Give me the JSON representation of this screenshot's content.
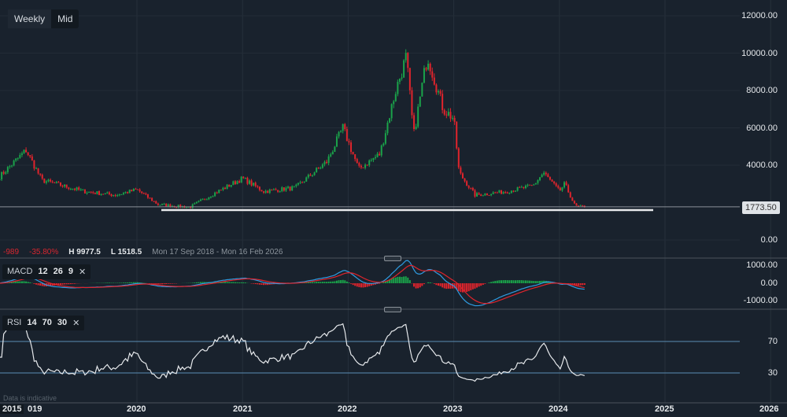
{
  "toolbar": {
    "weekly": "Weekly",
    "mid": "Mid"
  },
  "info": {
    "change": "-989",
    "change_pct": "-35.80%",
    "high": "H 9977.5",
    "low": "L 1518.5",
    "range": "Mon 17 Sep 2018 - Mon 16 Feb 2026"
  },
  "current_price": "1773.50",
  "price_axis": [
    "12000.00",
    "10000.00",
    "8000.00",
    "6000.00",
    "4000.00",
    "0.00"
  ],
  "macd": {
    "label": "MACD",
    "p1": "12",
    "p2": "26",
    "p3": "9",
    "axis": [
      "1000.00",
      "0.00",
      "-1000.00"
    ]
  },
  "rsi": {
    "label": "RSI",
    "p1": "14",
    "p2": "70",
    "p3": "30",
    "axis": [
      "70",
      "30"
    ]
  },
  "x_axis": [
    "2015",
    "019",
    "2020",
    "2021",
    "2022",
    "2023",
    "2024",
    "2025",
    "2026"
  ],
  "note": "Data is indicative",
  "colors": {
    "up": "#1aa34a",
    "down": "#e0242c",
    "bg": "#19222d"
  },
  "chart_data": {
    "type": "candlestick",
    "support_level": 1700,
    "price_path": [
      [
        2018.7,
        3400
      ],
      [
        2018.95,
        4800
      ],
      [
        2019.1,
        3200
      ],
      [
        2019.5,
        2600
      ],
      [
        2019.8,
        2400
      ],
      [
        2020.0,
        2700
      ],
      [
        2020.2,
        1900
      ],
      [
        2020.5,
        1750
      ],
      [
        2020.7,
        2400
      ],
      [
        2021.0,
        3300
      ],
      [
        2021.2,
        2600
      ],
      [
        2021.5,
        2800
      ],
      [
        2021.8,
        4200
      ],
      [
        2021.95,
        6000
      ],
      [
        2022.1,
        3800
      ],
      [
        2022.3,
        4600
      ],
      [
        2022.45,
        8000
      ],
      [
        2022.55,
        9800
      ],
      [
        2022.62,
        5600
      ],
      [
        2022.75,
        9900
      ],
      [
        2022.9,
        7000
      ],
      [
        2023.0,
        6500
      ],
      [
        2023.05,
        3600
      ],
      [
        2023.2,
        2400
      ],
      [
        2023.5,
        2600
      ],
      [
        2023.75,
        2900
      ],
      [
        2023.85,
        3600
      ],
      [
        2024.0,
        2600
      ],
      [
        2024.05,
        3000
      ],
      [
        2024.15,
        1800
      ],
      [
        2024.25,
        1773.5
      ]
    ]
  }
}
